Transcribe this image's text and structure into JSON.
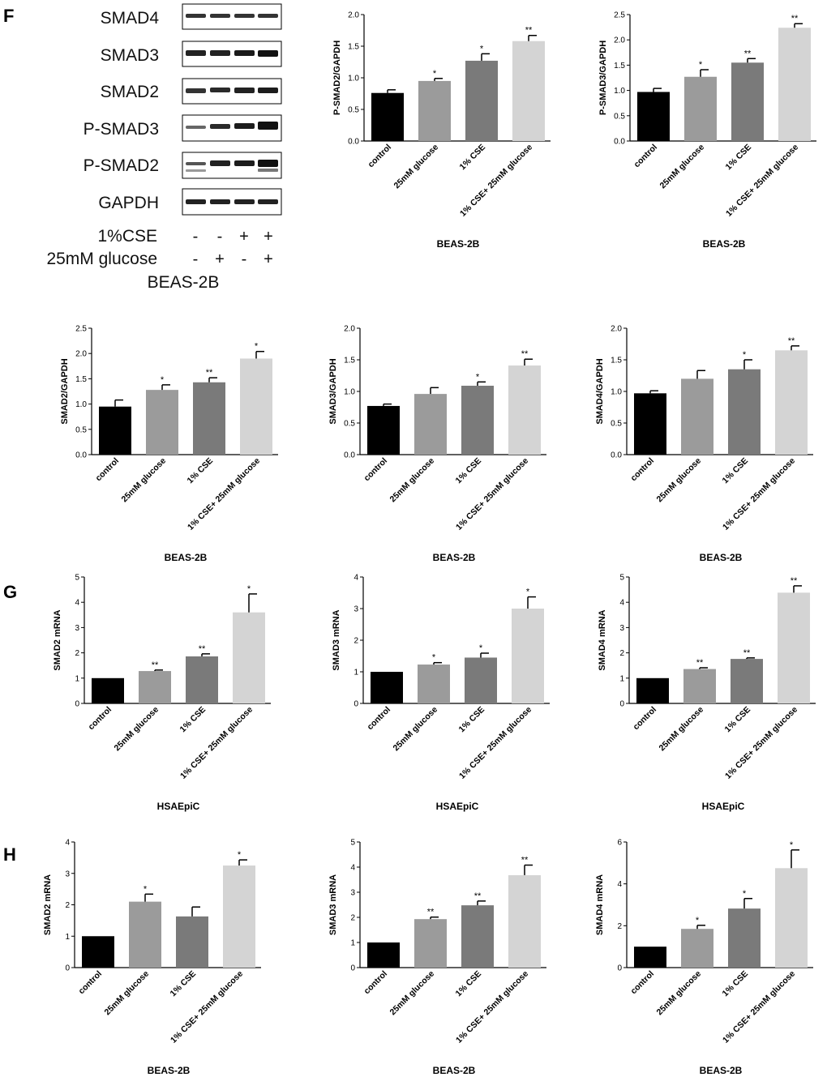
{
  "panel_labels": {
    "f": "F",
    "g": "G",
    "h": "H"
  },
  "western_blot": {
    "proteins": [
      "SMAD4",
      "SMAD3",
      "SMAD2",
      "P-SMAD3",
      "P-SMAD2",
      "GAPDH"
    ],
    "treatments": [
      {
        "label": "1%CSE",
        "marks": [
          "-",
          "-",
          "+",
          "+"
        ]
      },
      {
        "label": "25mM glucose",
        "marks": [
          "-",
          "+",
          "-",
          "+"
        ]
      }
    ],
    "cell_line": "BEAS-2B"
  },
  "colors": {
    "control": "#000000",
    "glucose": "#9b9b9b",
    "cse": "#7a7a7a",
    "combo": "#d4d4d4"
  },
  "chart_data": [
    {
      "id": "f_psmad2",
      "type": "bar",
      "ylabel": "P-SMAD2/GAPDH",
      "xlabel": "BEAS-2B",
      "categories": [
        "control",
        "25mM glucose",
        "1% CSE",
        "1% CSE+ 25mM glucose"
      ],
      "values": [
        0.76,
        0.95,
        1.27,
        1.58
      ],
      "errors": [
        0.05,
        0.04,
        0.11,
        0.09
      ],
      "significance": [
        "",
        "*",
        "*",
        "**"
      ],
      "ylim": [
        0,
        2.0
      ],
      "yticks": [
        "0.0",
        "0.5",
        "1.0",
        "1.5",
        "2.0"
      ]
    },
    {
      "id": "f_psmad3",
      "type": "bar",
      "ylabel": "P-SMAD3/GAPDH",
      "xlabel": "BEAS-2B",
      "categories": [
        "control",
        "25mM glucose",
        "1% CSE",
        "1% CSE+ 25mM glucose"
      ],
      "values": [
        0.97,
        1.27,
        1.55,
        2.24
      ],
      "errors": [
        0.07,
        0.14,
        0.08,
        0.08
      ],
      "significance": [
        "",
        "*",
        "**",
        "**"
      ],
      "ylim": [
        0,
        2.5
      ],
      "yticks": [
        "0.0",
        "0.5",
        "1.0",
        "1.5",
        "2.0",
        "2.5"
      ]
    },
    {
      "id": "f_smad2",
      "type": "bar",
      "ylabel": "SMAD2/GAPDH",
      "xlabel": "BEAS-2B",
      "categories": [
        "control",
        "25mM glucose",
        "1% CSE",
        "1% CSE+ 25mM glucose"
      ],
      "values": [
        0.95,
        1.28,
        1.43,
        1.9
      ],
      "errors": [
        0.13,
        0.1,
        0.09,
        0.14
      ],
      "significance": [
        "",
        "*",
        "**",
        "*"
      ],
      "ylim": [
        0,
        2.5
      ],
      "yticks": [
        "0.0",
        "0.5",
        "1.0",
        "1.5",
        "2.0",
        "2.5"
      ]
    },
    {
      "id": "f_smad3",
      "type": "bar",
      "ylabel": "SMAD3/GAPDH",
      "xlabel": "BEAS-2B",
      "categories": [
        "control",
        "25mM glucose",
        "1% CSE",
        "1% CSE+ 25mM glucose"
      ],
      "values": [
        0.77,
        0.96,
        1.09,
        1.41
      ],
      "errors": [
        0.03,
        0.1,
        0.06,
        0.1
      ],
      "significance": [
        "",
        "",
        "*",
        "**"
      ],
      "ylim": [
        0,
        2.0
      ],
      "yticks": [
        "0.0",
        "0.5",
        "1.0",
        "1.5",
        "2.0"
      ]
    },
    {
      "id": "f_smad4",
      "type": "bar",
      "ylabel": "SMAD4/GAPDH",
      "xlabel": "BEAS-2B",
      "categories": [
        "control",
        "25mM glucose",
        "1% CSE",
        "1% CSE+ 25mM glucose"
      ],
      "values": [
        0.97,
        1.2,
        1.35,
        1.65
      ],
      "errors": [
        0.04,
        0.13,
        0.15,
        0.07
      ],
      "significance": [
        "",
        "",
        "*",
        "**"
      ],
      "ylim": [
        0,
        2.0
      ],
      "yticks": [
        "0.0",
        "0.5",
        "1.0",
        "1.5",
        "2.0"
      ]
    },
    {
      "id": "g_smad2",
      "type": "bar",
      "ylabel": "SMAD2 mRNA",
      "xlabel": "HSAEpiC",
      "categories": [
        "control",
        "25mM glucose",
        "1% CSE",
        "1% CSE+ 25mM glucose"
      ],
      "values": [
        1.0,
        1.28,
        1.86,
        3.6
      ],
      "errors": [
        0,
        0.04,
        0.1,
        0.73
      ],
      "significance": [
        "",
        "**",
        "**",
        "*"
      ],
      "ylim": [
        0,
        5
      ],
      "yticks": [
        "0",
        "1",
        "2",
        "3",
        "4",
        "5"
      ]
    },
    {
      "id": "g_smad3",
      "type": "bar",
      "ylabel": "SMAD3 mRNA",
      "xlabel": "HSAEpiC",
      "categories": [
        "control",
        "25mM glucose",
        "1% CSE",
        "1% CSE+ 25mM glucose"
      ],
      "values": [
        1.0,
        1.23,
        1.45,
        3.0
      ],
      "errors": [
        0,
        0.06,
        0.14,
        0.37
      ],
      "significance": [
        "",
        "*",
        "*",
        "*"
      ],
      "ylim": [
        0,
        4
      ],
      "yticks": [
        "0",
        "1",
        "2",
        "3",
        "4"
      ]
    },
    {
      "id": "g_smad4",
      "type": "bar",
      "ylabel": "SMAD4 mRNA",
      "xlabel": "HSAEpiC",
      "categories": [
        "control",
        "25mM glucose",
        "1% CSE",
        "1% CSE+ 25mM glucose"
      ],
      "values": [
        1.0,
        1.36,
        1.76,
        4.38
      ],
      "errors": [
        0,
        0.05,
        0.04,
        0.27
      ],
      "significance": [
        "",
        "**",
        "**",
        "**"
      ],
      "ylim": [
        0,
        5
      ],
      "yticks": [
        "0",
        "1",
        "2",
        "3",
        "4",
        "5"
      ]
    },
    {
      "id": "h_smad2",
      "type": "bar",
      "ylabel": "SMAD2 mRNA",
      "xlabel": "BEAS-2B",
      "categories": [
        "control",
        "25mM glucose",
        "1% CSE",
        "1% CSE+ 25mM glucose"
      ],
      "values": [
        1.0,
        2.1,
        1.63,
        3.25
      ],
      "errors": [
        0,
        0.24,
        0.3,
        0.18
      ],
      "significance": [
        "",
        "*",
        "",
        "*"
      ],
      "ylim": [
        0,
        4
      ],
      "yticks": [
        "0",
        "1",
        "2",
        "3",
        "4"
      ]
    },
    {
      "id": "h_smad3",
      "type": "bar",
      "ylabel": "SMAD3 mRNA",
      "xlabel": "BEAS-2B",
      "categories": [
        "control",
        "25mM glucose",
        "1% CSE",
        "1% CSE+ 25mM glucose"
      ],
      "values": [
        1.0,
        1.93,
        2.48,
        3.68
      ],
      "errors": [
        0,
        0.08,
        0.17,
        0.4
      ],
      "significance": [
        "",
        "**",
        "**",
        "**"
      ],
      "ylim": [
        0,
        5
      ],
      "yticks": [
        "0",
        "1",
        "2",
        "3",
        "4",
        "5"
      ]
    },
    {
      "id": "h_smad4",
      "type": "bar",
      "ylabel": "SMAD4 mRNA",
      "xlabel": "BEAS-2B",
      "categories": [
        "control",
        "25mM glucose",
        "1% CSE",
        "1% CSE+ 25mM glucose"
      ],
      "values": [
        1.0,
        1.85,
        2.82,
        4.75
      ],
      "errors": [
        0,
        0.17,
        0.48,
        0.87
      ],
      "significance": [
        "",
        "*",
        "*",
        "*"
      ],
      "ylim": [
        0,
        6
      ],
      "yticks": [
        "0",
        "2",
        "4",
        "6"
      ]
    }
  ]
}
